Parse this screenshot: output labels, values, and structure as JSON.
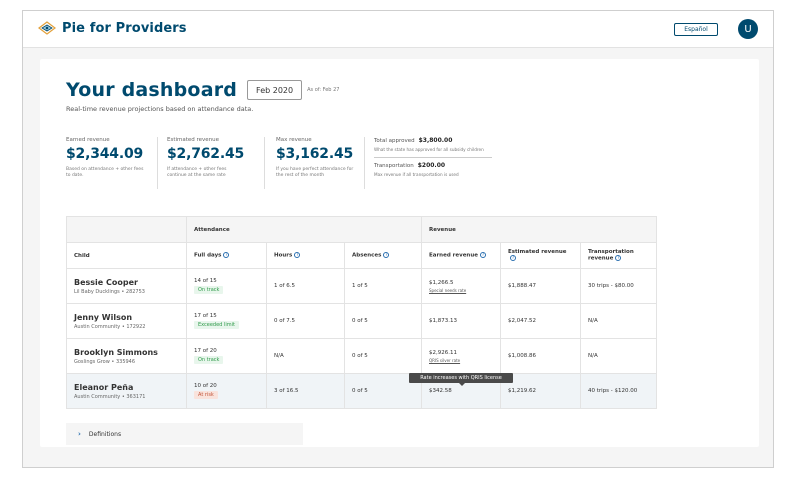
{
  "header": {
    "brand": "Pie for Providers",
    "language_button": "Español",
    "avatar_initial": "U"
  },
  "dashboard": {
    "title": "Your dashboard",
    "date": "Feb 2020",
    "as_of": "As of: Feb 27",
    "subtitle": "Real-time revenue projections based on attendance data."
  },
  "metrics": [
    {
      "label": "Earned revenue",
      "value": "$2,344.09",
      "desc": "Based on attendance + other fees to date."
    },
    {
      "label": "Estimated revenue",
      "value": "$2,762.45",
      "desc": "If attendance + other fees continue at the same rate"
    },
    {
      "label": "Max revenue",
      "value": "$3,162.45",
      "desc": "If you have perfect attendance for the rest of the month"
    }
  ],
  "approved": {
    "total_label": "Total approved",
    "total_value": "$3,800.00",
    "total_desc": "What the state has approved for all subsidy children",
    "transport_label": "Transportation",
    "transport_value": "$200.00",
    "transport_desc": "Max revenue if all transportation is used"
  },
  "table": {
    "group_attendance": "Attendance",
    "group_revenue": "Revenue",
    "columns": [
      "Child",
      "Full days",
      "Hours",
      "Absences",
      "Earned revenue",
      "Estimated revenue",
      "Transportation revenue"
    ],
    "rows": [
      {
        "name": "Bessie Cooper",
        "sub": "Lil Baby Ducklings • 282753",
        "full_days": "14 of 15",
        "status": "On track",
        "hours": "1 of 6.5",
        "absences": "1 of 5",
        "earned": "$1,266.5",
        "earned_note": "Special needs rate",
        "estimated": "$1,888.47",
        "transport": "30 trips - $80.00"
      },
      {
        "name": "Jenny Wilson",
        "sub": "Austin Community • 172922",
        "full_days": "17 of 15",
        "status": "Exceeded limit",
        "hours": "0 of 7.5",
        "absences": "0 of 5",
        "earned": "$1,873.13",
        "earned_note": "",
        "estimated": "$2,047.52",
        "transport": "N/A"
      },
      {
        "name": "Brooklyn Simmons",
        "sub": "Goslings Grow • 335946",
        "full_days": "17 of 20",
        "status": "On track",
        "hours": "N/A",
        "absences": "0 of 5",
        "earned": "$2,926.11",
        "earned_note": "QRIS silver rate",
        "estimated": "$1,008.86",
        "transport": "N/A"
      },
      {
        "name": "Eleanor Peña",
        "sub": "Austin Community • 363171",
        "full_days": "10 of 20",
        "status": "At risk",
        "hours": "3 of 16.5",
        "absences": "0 of 5",
        "earned": "$342.58",
        "earned_note": "",
        "estimated": "$1,219.62",
        "transport": "40 trips - $120.00"
      }
    ]
  },
  "tooltip": "Rate increases with QRIS license",
  "definitions": "Definitions",
  "colors": {
    "brand": "#004a6e",
    "on_track": "#2f9a4a",
    "at_risk": "#c2553a"
  }
}
